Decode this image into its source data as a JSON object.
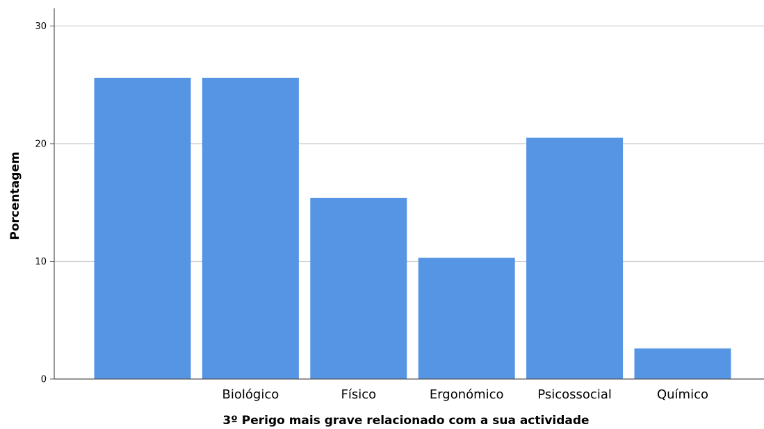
{
  "chart_data": {
    "type": "bar",
    "categories": [
      "",
      "Biológico",
      "Físico",
      "Ergonómico",
      "Psicossocial",
      "Químico"
    ],
    "values": [
      25.6,
      25.6,
      15.4,
      10.3,
      20.5,
      2.6
    ],
    "xlabel": "3º Perigo mais grave relacionado com a sua actividade",
    "ylabel": "Porcentagem",
    "ylim": [
      0,
      31.5
    ],
    "yticks": [
      0,
      10,
      20,
      30
    ],
    "grid": true,
    "bar_color": "#5595e4",
    "grid_color": "#c8c8c8"
  }
}
